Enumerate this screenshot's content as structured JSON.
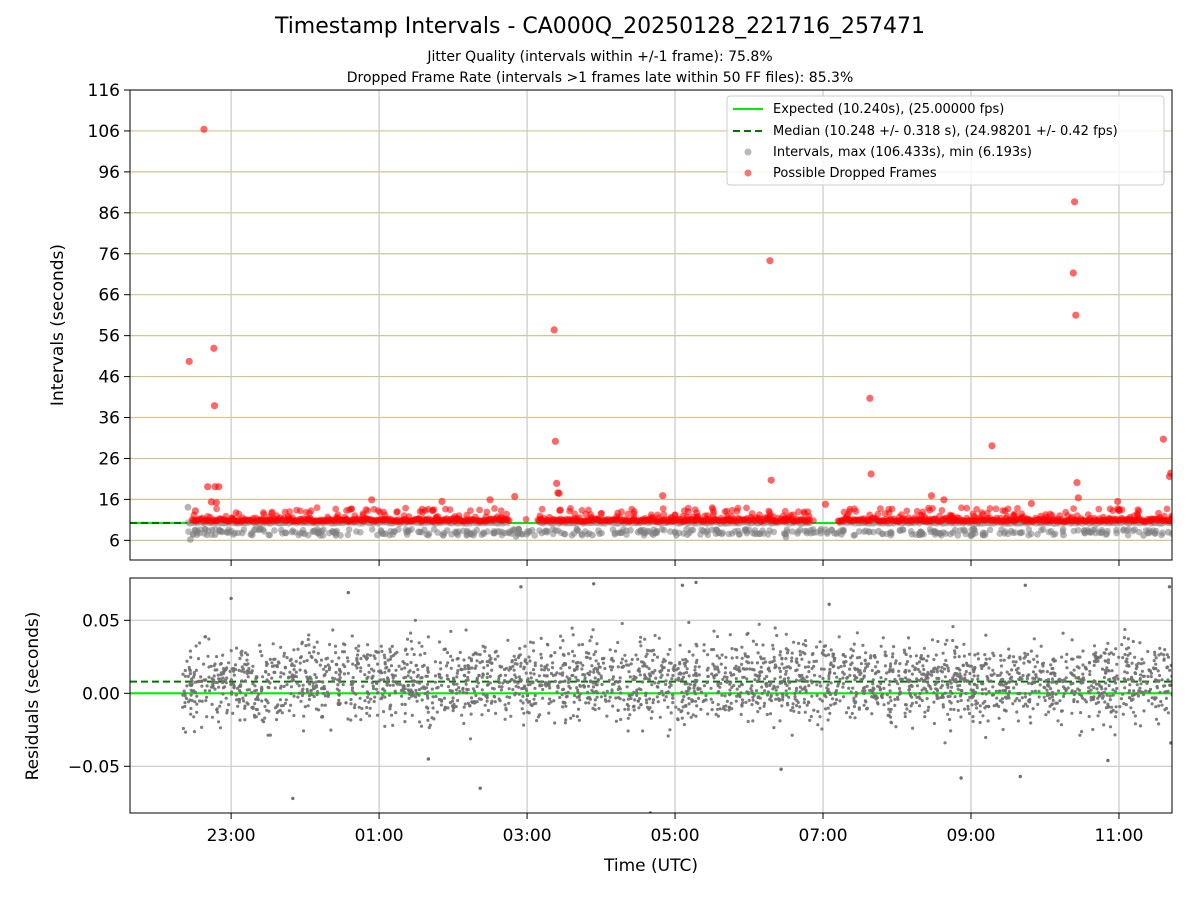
{
  "title": "Timestamp Intervals - CA000Q_20250128_221716_257471",
  "subtitle_1": "Jitter Quality (intervals within +/-1 frame): 75.8%",
  "subtitle_2": "Dropped Frame Rate (intervals >1 frames late within 50 FF files): 85.3%",
  "chart_data": [
    {
      "type": "scatter",
      "panel": "intervals",
      "ylabel": "Intervals (seconds)",
      "ylim": [
        1.2,
        116
      ],
      "yticks": [
        6,
        16,
        26,
        36,
        46,
        56,
        66,
        76,
        86,
        96,
        106,
        116
      ],
      "xlim": [
        "2025-01-28T21:38:00Z",
        "2025-01-29T11:43:00Z"
      ],
      "xticks": [
        "23:00",
        "01:00",
        "03:00",
        "05:00",
        "07:00",
        "09:00",
        "11:00"
      ],
      "xtick_times": [
        "2025-01-28T23:00:00Z",
        "2025-01-29T01:00:00Z",
        "2025-01-29T03:00:00Z",
        "2025-01-29T05:00:00Z",
        "2025-01-29T07:00:00Z",
        "2025-01-29T09:00:00Z",
        "2025-01-29T11:00:00Z"
      ],
      "grid": true,
      "legend_position": "top-right",
      "reference_lines": [
        {
          "name": "Expected (10.240s), (25.00000 fps)",
          "y": 10.24,
          "style": "solid",
          "color": "#00ee00"
        },
        {
          "name": "Median (10.248 +/- 0.318 s), (24.98201 +/- 0.42 fps)",
          "y": 10.248,
          "style": "dashed",
          "color": "#007700"
        }
      ],
      "series": [
        {
          "name": "Intervals, max (106.433s), min (6.193s)",
          "color": "#808080",
          "points": [
            [
              "2025-01-28T22:25:00Z",
              14.1
            ],
            [
              "2025-01-28T22:27:00Z",
              6.2
            ],
            [
              "2025-01-28T22:47:00Z",
              7.4
            ],
            [
              "2025-01-28T22:51:00Z",
              8.3
            ],
            [
              "2025-01-28T23:09:00Z",
              7.8
            ],
            [
              "2025-01-28T23:20:00Z",
              8.6
            ],
            [
              "2025-01-28T23:44:00Z",
              7.9
            ],
            [
              "2025-01-29T00:25:00Z",
              7.2
            ],
            [
              "2025-01-29T01:05:00Z",
              7.6
            ],
            [
              "2025-01-29T01:32:00Z",
              8.1
            ],
            [
              "2025-01-29T02:15:00Z",
              7.5
            ],
            [
              "2025-01-29T02:51:00Z",
              7.0
            ],
            [
              "2025-01-29T03:12:00Z",
              7.8
            ],
            [
              "2025-01-29T03:53:00Z",
              7.3
            ],
            [
              "2025-01-29T04:30:00Z",
              8.0
            ],
            [
              "2025-01-29T05:10:00Z",
              7.4
            ],
            [
              "2025-01-29T05:36:00Z",
              7.9
            ],
            [
              "2025-01-29T06:05:00Z",
              7.6
            ],
            [
              "2025-01-29T06:30:00Z",
              6.8
            ],
            [
              "2025-01-29T07:15:00Z",
              7.5
            ],
            [
              "2025-01-29T07:45:00Z",
              8.2
            ],
            [
              "2025-01-29T08:35:00Z",
              7.7
            ],
            [
              "2025-01-29T09:00:00Z",
              7.1
            ],
            [
              "2025-01-29T09:40:00Z",
              7.8
            ],
            [
              "2025-01-29T10:15:00Z",
              7.3
            ],
            [
              "2025-01-29T10:50:00Z",
              7.6
            ],
            [
              "2025-01-29T11:20:00Z",
              7.2
            ],
            [
              "2025-01-29T11:40:00Z",
              8.0
            ]
          ]
        },
        {
          "name": "Possible Dropped Frames",
          "color": "#ff0000",
          "points": [
            [
              "2025-01-28T22:26:00Z",
              49.7
            ],
            [
              "2025-01-28T22:38:00Z",
              106.4
            ],
            [
              "2025-01-28T22:46:00Z",
              52.9
            ],
            [
              "2025-01-28T22:46:30Z",
              38.9
            ],
            [
              "2025-01-28T22:41:00Z",
              19.1
            ],
            [
              "2025-01-28T22:47:00Z",
              19.1
            ],
            [
              "2025-01-28T22:50:00Z",
              19.1
            ],
            [
              "2025-01-28T22:44:00Z",
              15.4
            ],
            [
              "2025-01-28T22:48:00Z",
              15.2
            ],
            [
              "2025-01-28T22:31:00Z",
              13.2
            ],
            [
              "2025-01-29T03:22:00Z",
              57.4
            ],
            [
              "2025-01-29T03:23:00Z",
              30.2
            ],
            [
              "2025-01-29T03:24:00Z",
              19.9
            ],
            [
              "2025-01-29T03:25:00Z",
              17.6
            ],
            [
              "2025-01-29T03:26:00Z",
              17.5
            ],
            [
              "2025-01-29T03:27:00Z",
              13.4
            ],
            [
              "2025-01-29T06:17:00Z",
              74.3
            ],
            [
              "2025-01-29T06:18:00Z",
              20.7
            ],
            [
              "2025-01-29T07:38:00Z",
              40.7
            ],
            [
              "2025-01-29T07:39:00Z",
              22.2
            ],
            [
              "2025-01-29T09:17:00Z",
              29.1
            ],
            [
              "2025-01-29T10:24:00Z",
              88.7
            ],
            [
              "2025-01-29T10:23:00Z",
              71.3
            ],
            [
              "2025-01-29T10:25:00Z",
              61.0
            ],
            [
              "2025-01-29T10:26:00Z",
              20.1
            ],
            [
              "2025-01-29T10:27:00Z",
              16.4
            ],
            [
              "2025-01-29T11:36:00Z",
              30.7
            ],
            [
              "2025-01-29T11:42:00Z",
              22.4
            ],
            [
              "2025-01-29T11:41:00Z",
              21.6
            ],
            [
              "2025-01-29T02:50:00Z",
              16.7
            ],
            [
              "2025-01-29T04:50:00Z",
              16.9
            ],
            [
              "2025-01-29T01:51:00Z",
              15.5
            ],
            [
              "2025-01-29T02:30:00Z",
              15.9
            ],
            [
              "2025-01-29T00:54:00Z",
              15.9
            ],
            [
              "2025-01-29T07:02:00Z",
              14.8
            ],
            [
              "2025-01-29T08:28:00Z",
              16.9
            ],
            [
              "2025-01-29T08:38:00Z",
              15.9
            ],
            [
              "2025-01-29T09:49:00Z",
              15.0
            ],
            [
              "2025-01-29T10:59:00Z",
              15.5
            ]
          ]
        }
      ]
    },
    {
      "type": "scatter",
      "panel": "residuals",
      "ylabel": "Residuals (seconds)",
      "xlabel": "Time (UTC)",
      "ylim": [
        -0.082,
        0.079
      ],
      "yticks": [
        0.05,
        0.0,
        -0.05
      ],
      "ytick_labels": [
        "0.05",
        "0.00",
        "−0.05"
      ],
      "grid": true,
      "reference_lines": [
        {
          "y": 0.0,
          "style": "solid",
          "color": "#00ee00"
        },
        {
          "y": 0.008,
          "style": "dashed",
          "color": "#007700"
        }
      ],
      "series": [
        {
          "color": "#707070",
          "points": [
            [
              "2025-01-28T23:00:00Z",
              0.065
            ],
            [
              "2025-01-28T23:50:00Z",
              -0.072
            ],
            [
              "2025-01-29T02:22:00Z",
              -0.065
            ],
            [
              "2025-01-29T02:55:00Z",
              0.073
            ],
            [
              "2025-01-29T03:54:00Z",
              0.075
            ],
            [
              "2025-01-29T05:17:00Z",
              0.076
            ],
            [
              "2025-01-29T05:06:00Z",
              0.074
            ],
            [
              "2025-01-29T04:40:00Z",
              -0.082
            ],
            [
              "2025-01-29T08:52:00Z",
              -0.058
            ],
            [
              "2025-01-29T09:40:00Z",
              -0.057
            ],
            [
              "2025-01-29T09:44:00Z",
              0.074
            ],
            [
              "2025-01-29T11:41:00Z",
              0.073
            ],
            [
              "2025-01-29T11:42:00Z",
              -0.034
            ],
            [
              "2025-01-29T00:35:00Z",
              0.069
            ],
            [
              "2025-01-29T06:26:00Z",
              -0.052
            ],
            [
              "2025-01-29T10:51:00Z",
              -0.046
            ],
            [
              "2025-01-29T01:40:00Z",
              -0.045
            ],
            [
              "2025-01-29T07:05:00Z",
              0.061
            ]
          ]
        }
      ]
    }
  ]
}
